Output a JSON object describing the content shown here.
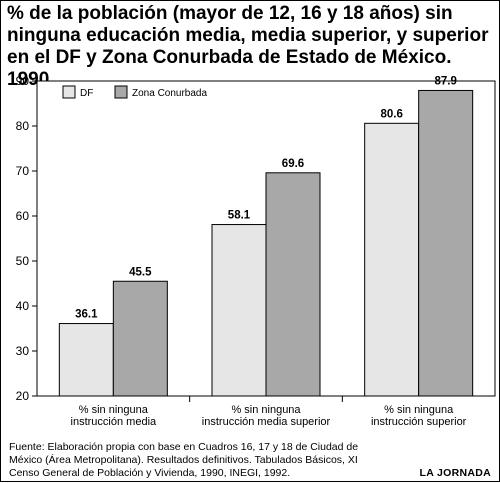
{
  "header": {
    "title": "% de la población (mayor de 12, 16 y 18 años) sin ninguna educación media, media superior, y superior en el DF y Zona Conurbada de Estado de México. 1990"
  },
  "footer": {
    "source": "Fuente: Elaboración propia con base en Cuadros 16, 17 y 18 de Ciudad de México (Área Metropolitana). Resultados definitivos. Tabulados Básicos, XI Censo General de Población y Vivienda, 1990, INEGI, 1992.",
    "brand": "LA JORNADA"
  },
  "chart_data": {
    "type": "bar",
    "title": "% de la población (mayor de 12, 16 y 18 años) sin ninguna educación media, media superior, y superior en el DF y Zona Conurbada de Estado de México. 1990",
    "categories": [
      [
        "% sin ninguna",
        "instrucción media"
      ],
      [
        "% sin ninguna",
        "instrucción media superior"
      ],
      [
        "% sin ninguna",
        "instrucción superior"
      ]
    ],
    "series": [
      {
        "name": "DF",
        "values": [
          36.1,
          58.1,
          80.6
        ],
        "color": "#e6e6e6"
      },
      {
        "name": "Zona Conurbada",
        "values": [
          45.5,
          69.6,
          87.9
        ],
        "color": "#a8a8a8"
      }
    ],
    "data_labels": [
      [
        "36.1",
        "58.1",
        "80.6"
      ],
      [
        "45.5",
        "69.6",
        "87.9"
      ]
    ],
    "yticks": [
      20,
      30,
      40,
      50,
      60,
      70,
      80,
      90
    ],
    "ylim": [
      20,
      90
    ],
    "legend": "top-left",
    "grid": false
  }
}
